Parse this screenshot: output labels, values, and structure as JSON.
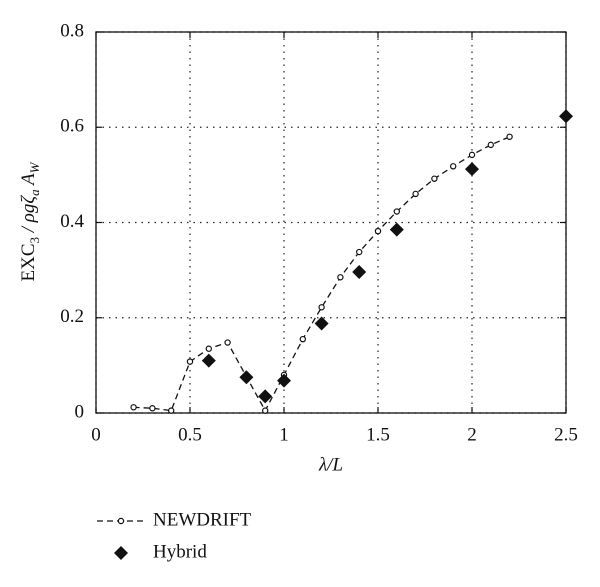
{
  "chart_data": {
    "type": "line",
    "ylabel": [
      "EXC",
      "3",
      " / ρgζ",
      "a",
      " A",
      "W"
    ],
    "xlabel": "λ/L",
    "xlim": [
      0,
      2.5
    ],
    "xticks": [
      0,
      0.5,
      1,
      1.5,
      2,
      2.5
    ],
    "ylim": [
      0,
      0.8
    ],
    "yticks": [
      0,
      0.2,
      0.4,
      0.6,
      0.8
    ],
    "grid": true,
    "series": [
      {
        "name": "NEWDRIFT",
        "color": "#111111",
        "style": "dashed-open-circle",
        "x": [
          0.2,
          0.3,
          0.4,
          0.5,
          0.6,
          0.7,
          0.9,
          1.0,
          1.1,
          1.2,
          1.3,
          1.4,
          1.5,
          1.6,
          1.7,
          1.8,
          1.9,
          2.0,
          2.1,
          2.2
        ],
        "values": [
          0.012,
          0.01,
          0.005,
          0.108,
          0.135,
          0.148,
          0.005,
          0.08,
          0.155,
          0.222,
          0.285,
          0.338,
          0.382,
          0.423,
          0.46,
          0.492,
          0.518,
          0.542,
          0.563,
          0.58
        ]
      },
      {
        "name": "Hybrid",
        "color": "#111111",
        "style": "filled-diamond",
        "x": [
          0.6,
          0.8,
          0.9,
          1.0,
          1.2,
          1.4,
          1.6,
          2.0,
          2.5
        ],
        "values": [
          0.11,
          0.075,
          0.035,
          0.068,
          0.188,
          0.296,
          0.385,
          0.512,
          0.623
        ]
      }
    ]
  }
}
